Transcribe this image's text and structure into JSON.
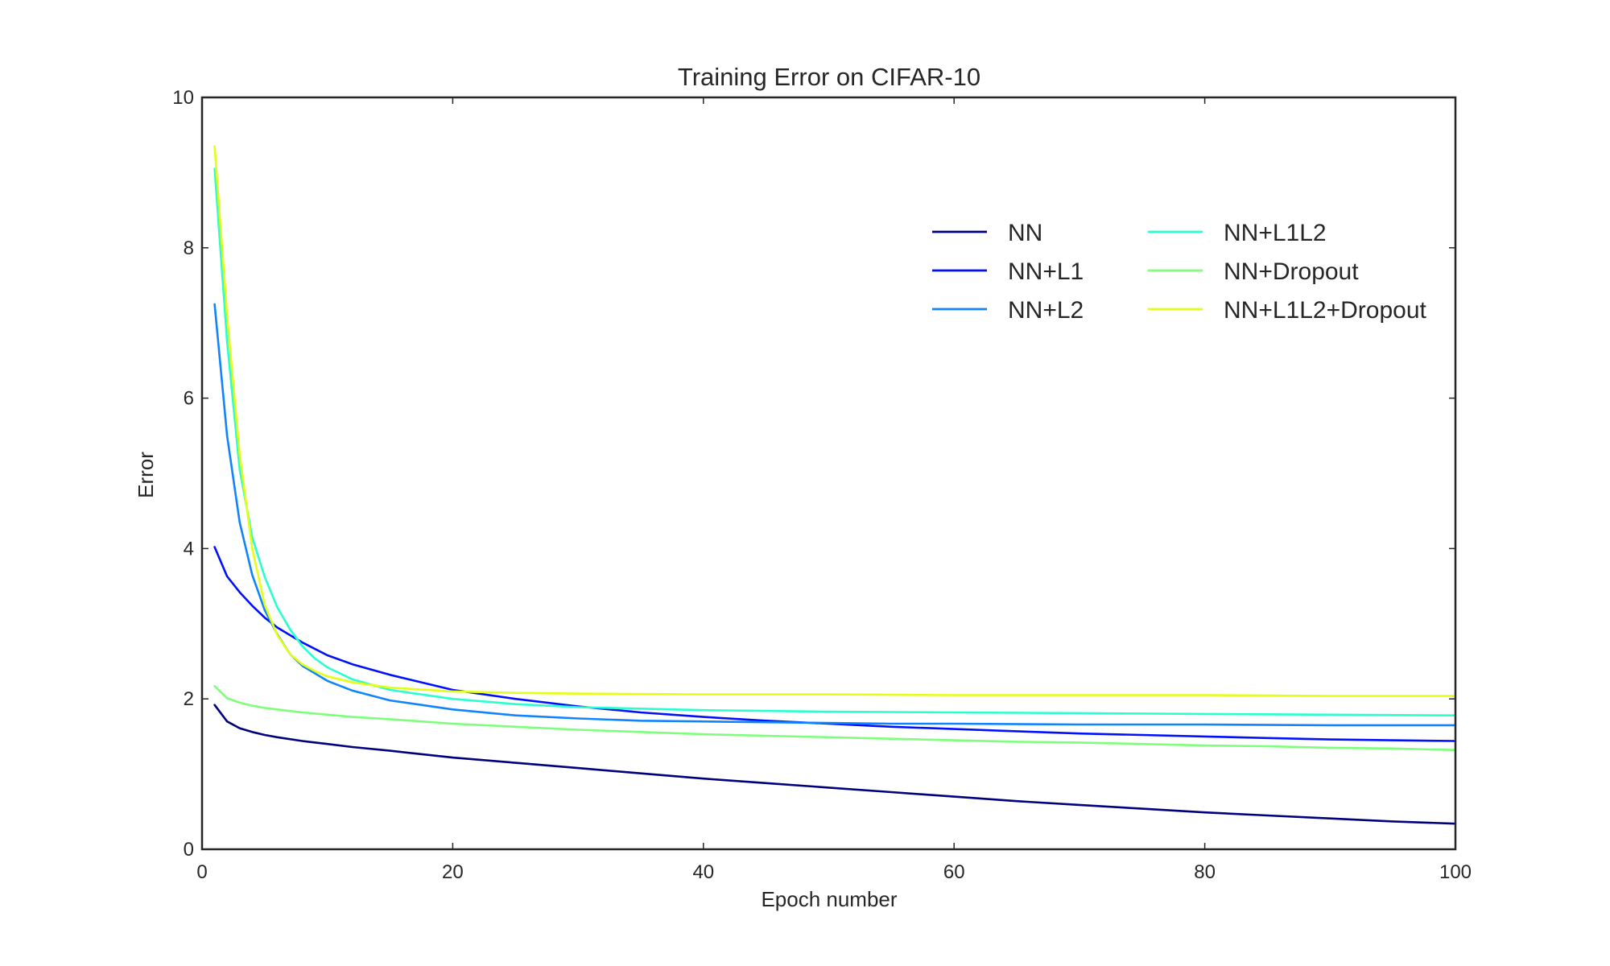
{
  "chart_data": {
    "type": "line",
    "title": "Training Error on CIFAR-10",
    "xlabel": "Epoch number",
    "ylabel": "Error",
    "xlim": [
      0,
      100
    ],
    "ylim": [
      0,
      10
    ],
    "xticks": [
      "0",
      "20",
      "40",
      "60",
      "80",
      "100"
    ],
    "yticks": [
      "0",
      "2",
      "4",
      "6",
      "8",
      "10"
    ],
    "grid": false,
    "legend_position": "upper-right",
    "series": [
      {
        "name": "NN",
        "color": "#00007f",
        "points": [
          [
            1,
            1.92
          ],
          [
            2,
            1.7
          ],
          [
            3,
            1.61
          ],
          [
            4,
            1.56
          ],
          [
            5,
            1.52
          ],
          [
            6,
            1.49
          ],
          [
            8,
            1.44
          ],
          [
            10,
            1.4
          ],
          [
            12,
            1.36
          ],
          [
            15,
            1.31
          ],
          [
            20,
            1.22
          ],
          [
            25,
            1.15
          ],
          [
            30,
            1.08
          ],
          [
            35,
            1.01
          ],
          [
            40,
            0.94
          ],
          [
            45,
            0.88
          ],
          [
            50,
            0.82
          ],
          [
            55,
            0.76
          ],
          [
            60,
            0.7
          ],
          [
            65,
            0.64
          ],
          [
            70,
            0.59
          ],
          [
            75,
            0.54
          ],
          [
            80,
            0.49
          ],
          [
            85,
            0.45
          ],
          [
            90,
            0.41
          ],
          [
            95,
            0.37
          ],
          [
            100,
            0.34
          ]
        ]
      },
      {
        "name": "NN+L1",
        "color": "#0010ff",
        "points": [
          [
            1,
            4.02
          ],
          [
            2,
            3.63
          ],
          [
            3,
            3.42
          ],
          [
            4,
            3.24
          ],
          [
            5,
            3.08
          ],
          [
            6,
            2.95
          ],
          [
            8,
            2.75
          ],
          [
            10,
            2.58
          ],
          [
            12,
            2.46
          ],
          [
            15,
            2.32
          ],
          [
            20,
            2.12
          ],
          [
            25,
            2.0
          ],
          [
            30,
            1.9
          ],
          [
            35,
            1.82
          ],
          [
            40,
            1.76
          ],
          [
            45,
            1.71
          ],
          [
            50,
            1.67
          ],
          [
            55,
            1.63
          ],
          [
            60,
            1.6
          ],
          [
            65,
            1.57
          ],
          [
            70,
            1.54
          ],
          [
            75,
            1.52
          ],
          [
            80,
            1.5
          ],
          [
            85,
            1.48
          ],
          [
            90,
            1.46
          ],
          [
            95,
            1.45
          ],
          [
            100,
            1.44
          ]
        ]
      },
      {
        "name": "NN+L2",
        "color": "#1084ff",
        "points": [
          [
            1,
            7.25
          ],
          [
            2,
            5.5
          ],
          [
            3,
            4.35
          ],
          [
            4,
            3.65
          ],
          [
            5,
            3.18
          ],
          [
            6,
            2.86
          ],
          [
            7,
            2.6
          ],
          [
            8,
            2.44
          ],
          [
            10,
            2.24
          ],
          [
            12,
            2.11
          ],
          [
            15,
            1.98
          ],
          [
            20,
            1.86
          ],
          [
            25,
            1.78
          ],
          [
            30,
            1.74
          ],
          [
            35,
            1.71
          ],
          [
            40,
            1.7
          ],
          [
            45,
            1.69
          ],
          [
            50,
            1.68
          ],
          [
            55,
            1.67
          ],
          [
            60,
            1.67
          ],
          [
            70,
            1.66
          ],
          [
            80,
            1.66
          ],
          [
            90,
            1.65
          ],
          [
            100,
            1.65
          ]
        ]
      },
      {
        "name": "NN+L1L2",
        "color": "#29ffce",
        "points": [
          [
            1,
            9.05
          ],
          [
            2,
            6.75
          ],
          [
            3,
            5.05
          ],
          [
            4,
            4.15
          ],
          [
            5,
            3.62
          ],
          [
            6,
            3.22
          ],
          [
            7,
            2.93
          ],
          [
            8,
            2.7
          ],
          [
            9,
            2.54
          ],
          [
            10,
            2.42
          ],
          [
            12,
            2.26
          ],
          [
            15,
            2.12
          ],
          [
            20,
            2.0
          ],
          [
            25,
            1.93
          ],
          [
            30,
            1.89
          ],
          [
            35,
            1.87
          ],
          [
            40,
            1.85
          ],
          [
            45,
            1.84
          ],
          [
            50,
            1.83
          ],
          [
            60,
            1.82
          ],
          [
            70,
            1.81
          ],
          [
            80,
            1.8
          ],
          [
            90,
            1.79
          ],
          [
            100,
            1.78
          ]
        ]
      },
      {
        "name": "NN+Dropout",
        "color": "#7dff7a",
        "points": [
          [
            1,
            2.17
          ],
          [
            2,
            2.01
          ],
          [
            3,
            1.95
          ],
          [
            4,
            1.91
          ],
          [
            5,
            1.88
          ],
          [
            6,
            1.86
          ],
          [
            8,
            1.82
          ],
          [
            10,
            1.79
          ],
          [
            12,
            1.76
          ],
          [
            15,
            1.73
          ],
          [
            20,
            1.67
          ],
          [
            25,
            1.63
          ],
          [
            30,
            1.59
          ],
          [
            35,
            1.56
          ],
          [
            40,
            1.53
          ],
          [
            45,
            1.51
          ],
          [
            50,
            1.49
          ],
          [
            55,
            1.47
          ],
          [
            60,
            1.45
          ],
          [
            65,
            1.43
          ],
          [
            70,
            1.42
          ],
          [
            75,
            1.4
          ],
          [
            80,
            1.38
          ],
          [
            85,
            1.37
          ],
          [
            90,
            1.35
          ],
          [
            95,
            1.34
          ],
          [
            100,
            1.32
          ]
        ]
      },
      {
        "name": "NN+L1L2+Dropout",
        "color": "#e4ff13",
        "points": [
          [
            1,
            9.35
          ],
          [
            2,
            7.1
          ],
          [
            3,
            5.25
          ],
          [
            4,
            4.0
          ],
          [
            5,
            3.25
          ],
          [
            6,
            2.85
          ],
          [
            7,
            2.6
          ],
          [
            8,
            2.46
          ],
          [
            9,
            2.37
          ],
          [
            10,
            2.3
          ],
          [
            12,
            2.22
          ],
          [
            15,
            2.15
          ],
          [
            20,
            2.1
          ],
          [
            25,
            2.08
          ],
          [
            30,
            2.07
          ],
          [
            40,
            2.06
          ],
          [
            50,
            2.06
          ],
          [
            60,
            2.05
          ],
          [
            70,
            2.05
          ],
          [
            80,
            2.05
          ],
          [
            90,
            2.04
          ],
          [
            100,
            2.04
          ]
        ]
      }
    ]
  }
}
